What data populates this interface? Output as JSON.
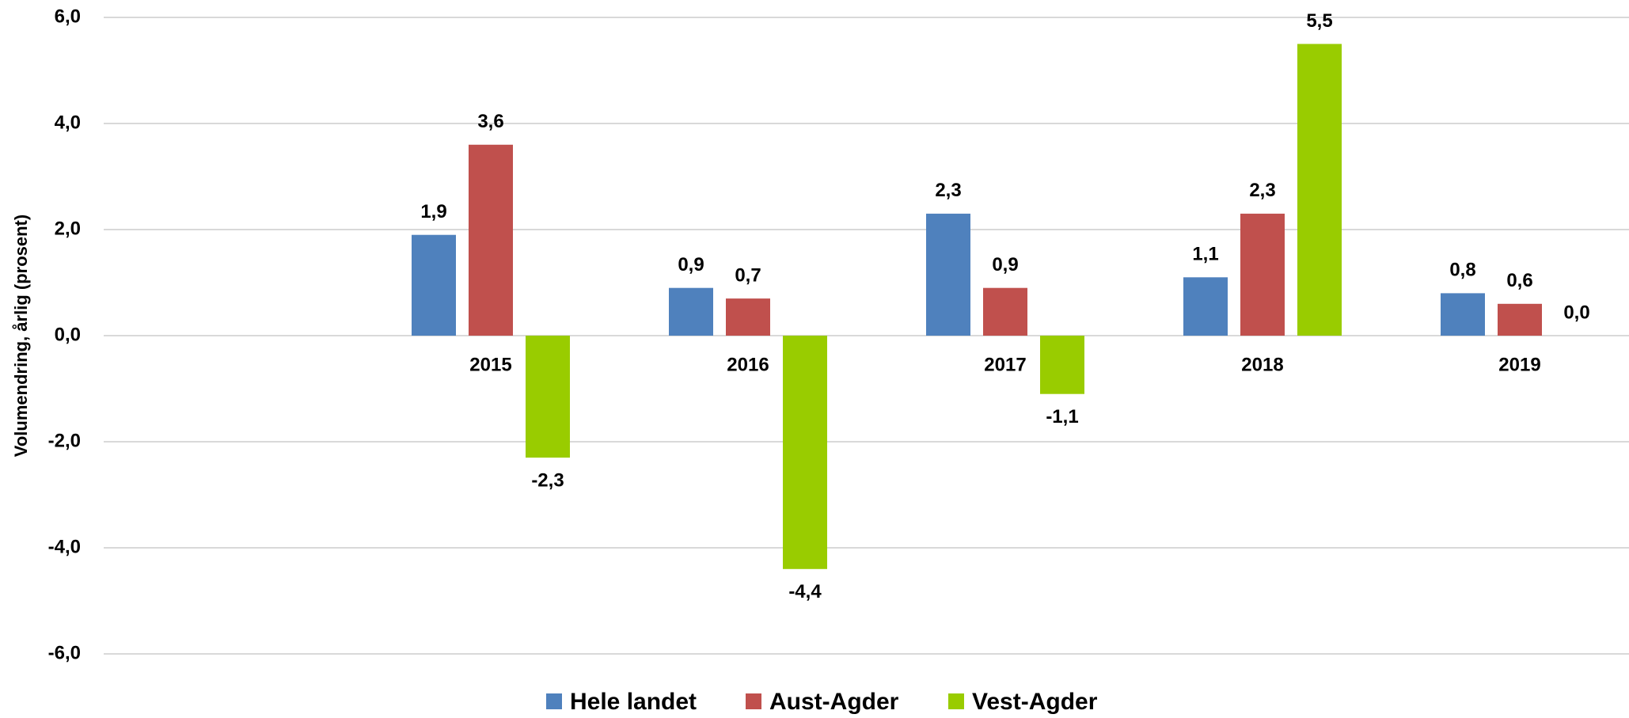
{
  "chart_data": {
    "type": "bar",
    "y_label": "Volumendring, årlig (prosent)",
    "categories": [
      "2015",
      "2016",
      "2017",
      "2018",
      "2019"
    ],
    "series": [
      {
        "name": "Hele landet",
        "color": "#4f81bd",
        "values": [
          1.9,
          0.9,
          2.3,
          1.1,
          0.8
        ],
        "value_labels": [
          "1,9",
          "0,9",
          "2,3",
          "1,1",
          "0,8"
        ]
      },
      {
        "name": "Aust-Agder",
        "color": "#c0504d",
        "values": [
          3.6,
          0.7,
          0.9,
          2.3,
          0.6
        ],
        "value_labels": [
          "3,6",
          "0,7",
          "0,9",
          "2,3",
          "0,6"
        ]
      },
      {
        "name": "Vest-Agder",
        "color": "#99cc00",
        "values": [
          -2.3,
          -4.4,
          -1.1,
          5.5,
          0.0
        ],
        "value_labels": [
          "-2,3",
          "-4,4",
          "-1,1",
          "5,5",
          "0,0"
        ]
      }
    ],
    "ylim": [
      -6,
      6
    ],
    "yticks": [
      {
        "value": -6,
        "label": "-6,0"
      },
      {
        "value": -4,
        "label": "-4,0"
      },
      {
        "value": -2,
        "label": "-2,0"
      },
      {
        "value": 0,
        "label": "0,0"
      },
      {
        "value": 2,
        "label": "2,0"
      },
      {
        "value": 4,
        "label": "4,0"
      },
      {
        "value": 6,
        "label": "6,0"
      }
    ],
    "grid": true,
    "legend": "bottom"
  }
}
